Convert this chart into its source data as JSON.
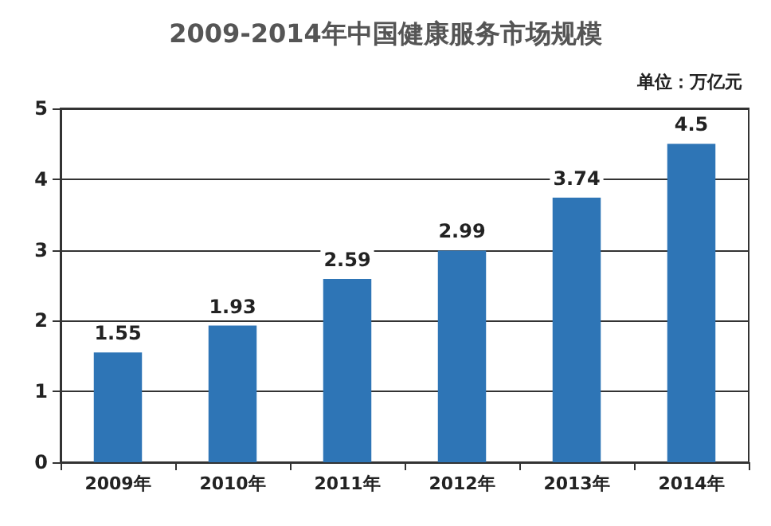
{
  "chart_data": {
    "type": "bar",
    "title": "2009-2014年中国健康服务市场规模",
    "annotations": [
      "单位：万亿元"
    ],
    "categories": [
      "2009年",
      "2010年",
      "2011年",
      "2012年",
      "2013年",
      "2014年"
    ],
    "values": [
      1.55,
      1.93,
      2.59,
      2.99,
      3.74,
      4.5
    ],
    "color": "#2e75b6",
    "ylim": [
      0,
      5
    ],
    "yticks": [
      0,
      1,
      2,
      3,
      4,
      5
    ],
    "grid": "y",
    "data_labels": true
  }
}
